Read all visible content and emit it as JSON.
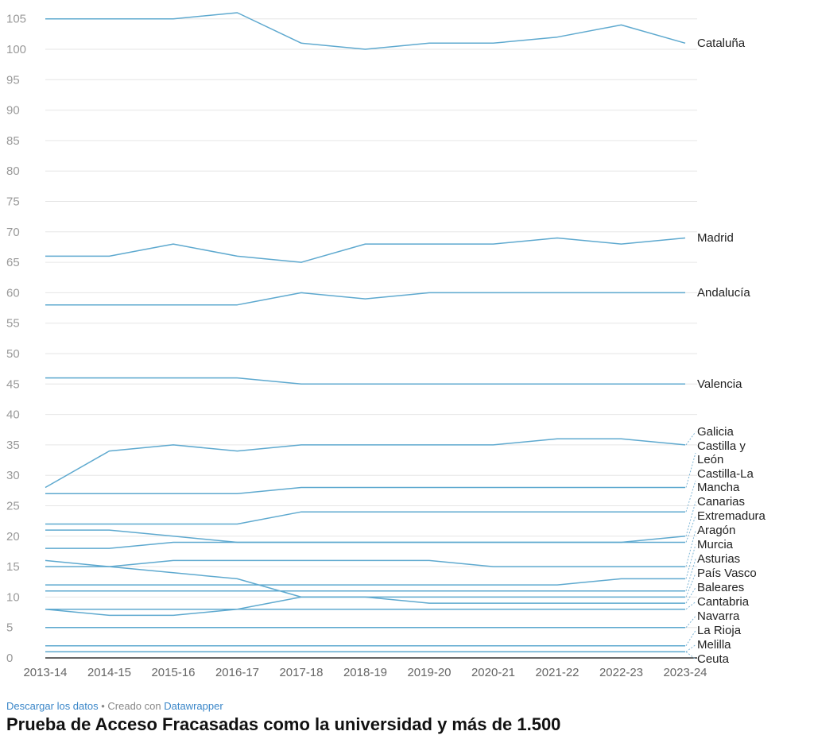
{
  "chart_data": {
    "type": "line",
    "x": [
      "2013-14",
      "2014-15",
      "2015-16",
      "2016-17",
      "2017-18",
      "2018-19",
      "2019-20",
      "2020-21",
      "2021-22",
      "2022-23",
      "2023-24"
    ],
    "yticks": [
      0,
      5,
      10,
      15,
      20,
      25,
      30,
      35,
      40,
      45,
      50,
      55,
      60,
      65,
      70,
      75,
      80,
      85,
      90,
      95,
      100,
      105
    ],
    "ylim": [
      0,
      106
    ],
    "grid": true,
    "line_color": "#5ea9cf",
    "series": [
      {
        "name": "Cataluña",
        "values": [
          105,
          105,
          105,
          106,
          101,
          100,
          101,
          101,
          102,
          104,
          101
        ]
      },
      {
        "name": "Madrid",
        "values": [
          66,
          66,
          68,
          66,
          65,
          68,
          68,
          68,
          69,
          68,
          69
        ]
      },
      {
        "name": "Andalucía",
        "values": [
          58,
          58,
          58,
          58,
          60,
          59,
          60,
          60,
          60,
          60,
          60
        ]
      },
      {
        "name": "Valencia",
        "values": [
          46,
          46,
          46,
          46,
          45,
          45,
          45,
          45,
          45,
          45,
          45
        ]
      },
      {
        "name": "Galicia",
        "values": [
          28,
          34,
          35,
          34,
          35,
          35,
          35,
          35,
          36,
          36,
          35
        ]
      },
      {
        "name": "Castilla y León",
        "values": [
          27,
          27,
          27,
          27,
          28,
          28,
          28,
          28,
          28,
          28,
          28
        ]
      },
      {
        "name": "Castilla-La Mancha",
        "values": [
          22,
          22,
          22,
          22,
          24,
          24,
          24,
          24,
          24,
          24,
          24
        ]
      },
      {
        "name": "Canarias",
        "values": [
          18,
          18,
          19,
          19,
          19,
          19,
          19,
          19,
          19,
          19,
          20
        ]
      },
      {
        "name": "Extremadura",
        "values": [
          21,
          21,
          20,
          19,
          19,
          19,
          19,
          19,
          19,
          19,
          19
        ]
      },
      {
        "name": "Aragón",
        "values": [
          15,
          15,
          16,
          16,
          16,
          16,
          16,
          15,
          15,
          15,
          15
        ]
      },
      {
        "name": "Murcia",
        "values": [
          12,
          12,
          12,
          12,
          12,
          12,
          12,
          12,
          12,
          13,
          13
        ]
      },
      {
        "name": "Asturias",
        "values": [
          11,
          11,
          11,
          11,
          11,
          11,
          11,
          11,
          11,
          11,
          11
        ]
      },
      {
        "name": "País Vasco",
        "values": [
          16,
          15,
          14,
          13,
          10,
          10,
          10,
          10,
          10,
          10,
          10
        ]
      },
      {
        "name": "Baleares",
        "values": [
          8,
          8,
          8,
          8,
          10,
          10,
          9,
          9,
          9,
          9,
          9
        ]
      },
      {
        "name": "Cantabria",
        "values": [
          8,
          7,
          7,
          8,
          8,
          8,
          8,
          8,
          8,
          8,
          8
        ]
      },
      {
        "name": "Navarra",
        "values": [
          5,
          5,
          5,
          5,
          5,
          5,
          5,
          5,
          5,
          5,
          5
        ]
      },
      {
        "name": "La Rioja",
        "values": [
          2,
          2,
          2,
          2,
          2,
          2,
          2,
          2,
          2,
          2,
          2
        ]
      },
      {
        "name": "Melilla",
        "values": [
          1,
          1,
          1,
          1,
          1,
          1,
          1,
          1,
          1,
          1,
          1
        ]
      },
      {
        "name": "Ceuta",
        "values": [
          1,
          1,
          1,
          1,
          1,
          1,
          1,
          1,
          1,
          1,
          1
        ]
      }
    ],
    "labels": [
      {
        "series": "Cataluña",
        "lines": [
          "Cataluña"
        ]
      },
      {
        "series": "Madrid",
        "lines": [
          "Madrid"
        ]
      },
      {
        "series": "Andalucía",
        "lines": [
          "Andalucía"
        ]
      },
      {
        "series": "Valencia",
        "lines": [
          "Valencia"
        ]
      },
      {
        "series": "Galicia",
        "lines": [
          "Galicia"
        ]
      },
      {
        "series": "Castilla y León",
        "lines": [
          "Castilla y",
          "León"
        ]
      },
      {
        "series": "Castilla-La Mancha",
        "lines": [
          "Castilla-La",
          "Mancha"
        ]
      },
      {
        "series": "Canarias",
        "lines": [
          "Canarias"
        ]
      },
      {
        "series": "Extremadura",
        "lines": [
          "Extremadura"
        ]
      },
      {
        "series": "Aragón",
        "lines": [
          "Aragón"
        ]
      },
      {
        "series": "Murcia",
        "lines": [
          "Murcia"
        ]
      },
      {
        "series": "Asturias",
        "lines": [
          "Asturias"
        ]
      },
      {
        "series": "País Vasco",
        "lines": [
          "País Vasco"
        ]
      },
      {
        "series": "Baleares",
        "lines": [
          "Baleares"
        ]
      },
      {
        "series": "Cantabria",
        "lines": [
          "Cantabria"
        ]
      },
      {
        "series": "Navarra",
        "lines": [
          "Navarra"
        ]
      },
      {
        "series": "La Rioja",
        "lines": [
          "La Rioja"
        ]
      },
      {
        "series": "Melilla",
        "lines": [
          "Melilla"
        ]
      },
      {
        "series": "Ceuta",
        "lines": [
          "Ceuta"
        ]
      }
    ]
  },
  "footer": {
    "download_label": "Descargar los datos",
    "separator": " • Creado con ",
    "tool_label": "Datawrapper"
  },
  "next_title": "Prueba de Acceso Fracasadas como la universidad y más de 1.500"
}
